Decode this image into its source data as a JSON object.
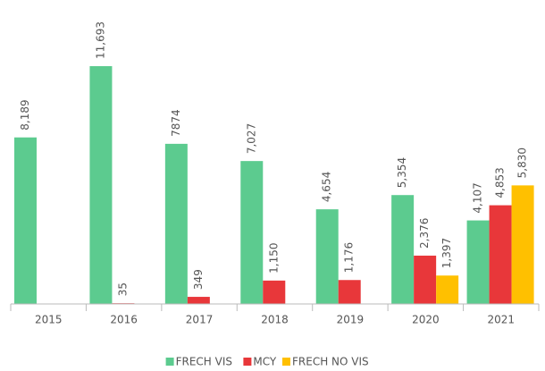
{
  "chart_data": {
    "type": "bar",
    "categories": [
      "2015",
      "2016",
      "2017",
      "2018",
      "2019",
      "2020",
      "2021"
    ],
    "series": [
      {
        "name": "FRECH VIS",
        "color": "#5ccb8f",
        "values": [
          8189,
          11693,
          7874,
          7027,
          4654,
          5354,
          4107
        ],
        "value_labels": [
          "8,189",
          "11,693",
          "7874",
          "7,027",
          "4,654",
          "5,354",
          "4,107"
        ]
      },
      {
        "name": "MCY",
        "color": "#e8373a",
        "values": [
          null,
          35,
          349,
          1150,
          1176,
          2376,
          4853
        ],
        "value_labels": [
          null,
          "35",
          "349",
          "1,150",
          "1,176",
          "2,376",
          "4,853"
        ]
      },
      {
        "name": "FRECH NO VIS",
        "color": "#ffc000",
        "values": [
          null,
          null,
          null,
          null,
          null,
          1397,
          5830
        ],
        "value_labels": [
          null,
          null,
          null,
          null,
          null,
          "1,397",
          "5,830"
        ]
      }
    ],
    "legend": "bottom"
  }
}
